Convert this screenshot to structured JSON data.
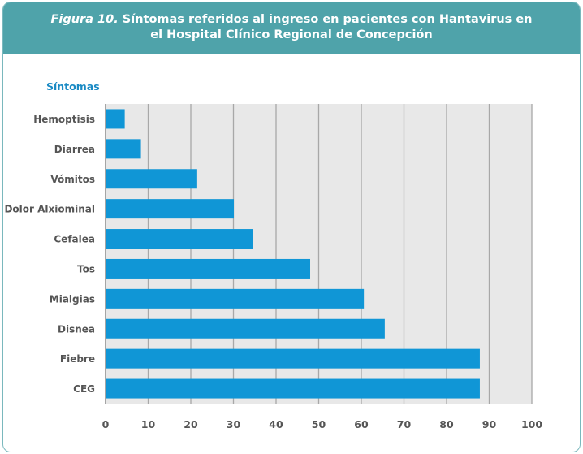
{
  "header": {
    "figure_label": "Figura 10.",
    "title_line1": "Síntomas referidos al ingreso en pacientes con Hantavirus en",
    "title_line2": "el Hospital Clínico Regional de Concepción"
  },
  "colors": {
    "header_bg": "#4fa3aa",
    "bar": "#1096d6",
    "plot_bg": "#e8e8e8",
    "grid": "#a8a8a8",
    "axis_label": "#1a8ac4",
    "tick_text": "#555555"
  },
  "chart_data": {
    "type": "bar",
    "orientation": "horizontal",
    "title": "Síntomas referidos al ingreso en pacientes con Hantavirus en el Hospital Clínico Regional de Concepción",
    "ylabel": "Síntomas",
    "xlabel": "",
    "categories": [
      "Hemoptisis",
      "Diarrea",
      "Vómitos",
      "Dolor Alxiominal",
      "Cefalea",
      "Tos",
      "Mialgias",
      "Disnea",
      "Fiebre",
      "CEG"
    ],
    "values": [
      4.5,
      8.3,
      21.5,
      30.1,
      34.5,
      48.0,
      60.6,
      65.5,
      87.8,
      87.8
    ],
    "xlim": [
      0,
      100
    ],
    "xticks": [
      0,
      10,
      20,
      30,
      40,
      50,
      60,
      70,
      80,
      90,
      100
    ],
    "grid": true
  }
}
